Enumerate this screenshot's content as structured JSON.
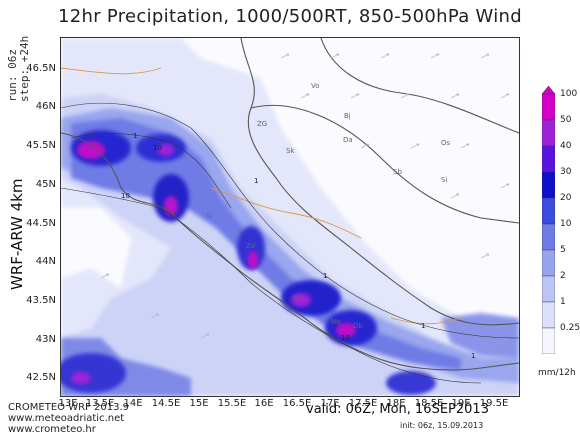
{
  "title": "12hr Precipitation, 1000/500RT, 850-500hPa Wind",
  "run_info": {
    "run": "run: 06z",
    "step": "step: +24h"
  },
  "model": "WRF-ARW 4km",
  "axes": {
    "lat_labels": [
      "46.5N",
      "46N",
      "45.5N",
      "45N",
      "44.5N",
      "44N",
      "43.5N",
      "43N",
      "42.5N"
    ],
    "lon_labels": [
      "13E",
      "13.5E",
      "14E",
      "14.5E",
      "15E",
      "15.5E",
      "16E",
      "16.5E",
      "17E",
      "17.5E",
      "18E",
      "18.5E",
      "19E",
      "19.5E"
    ]
  },
  "colorbar": {
    "levels": [
      "100",
      "50",
      "40",
      "30",
      "20",
      "10",
      "5",
      "2",
      "1",
      "0.25"
    ],
    "colors": [
      "#d400c8",
      "#a020d8",
      "#5a14e0",
      "#1010c8",
      "#3c4cdc",
      "#6f7ce6",
      "#98a4ee",
      "#bcc4f4",
      "#dce0fa",
      "#f6f6ff"
    ],
    "unit": "mm/12h"
  },
  "cities": [
    "Vo",
    "Bj",
    "ZG",
    "Da",
    "Sk",
    "Os",
    "Sb",
    "Si",
    "Si",
    "Zd",
    "St",
    "Ms",
    "Db"
  ],
  "contour_labels": [
    "1",
    "10",
    "10",
    "1",
    "1",
    "10",
    "1",
    "1"
  ],
  "footer": {
    "line1": "CROMETEO WRF 2013.9",
    "line2": "www.meteoadriatic.net",
    "line3": "www.crometeo.hr",
    "valid": "valid: 06Z, Mon, 16SEP2013",
    "init": "init: 06z, 15.09.2013"
  }
}
